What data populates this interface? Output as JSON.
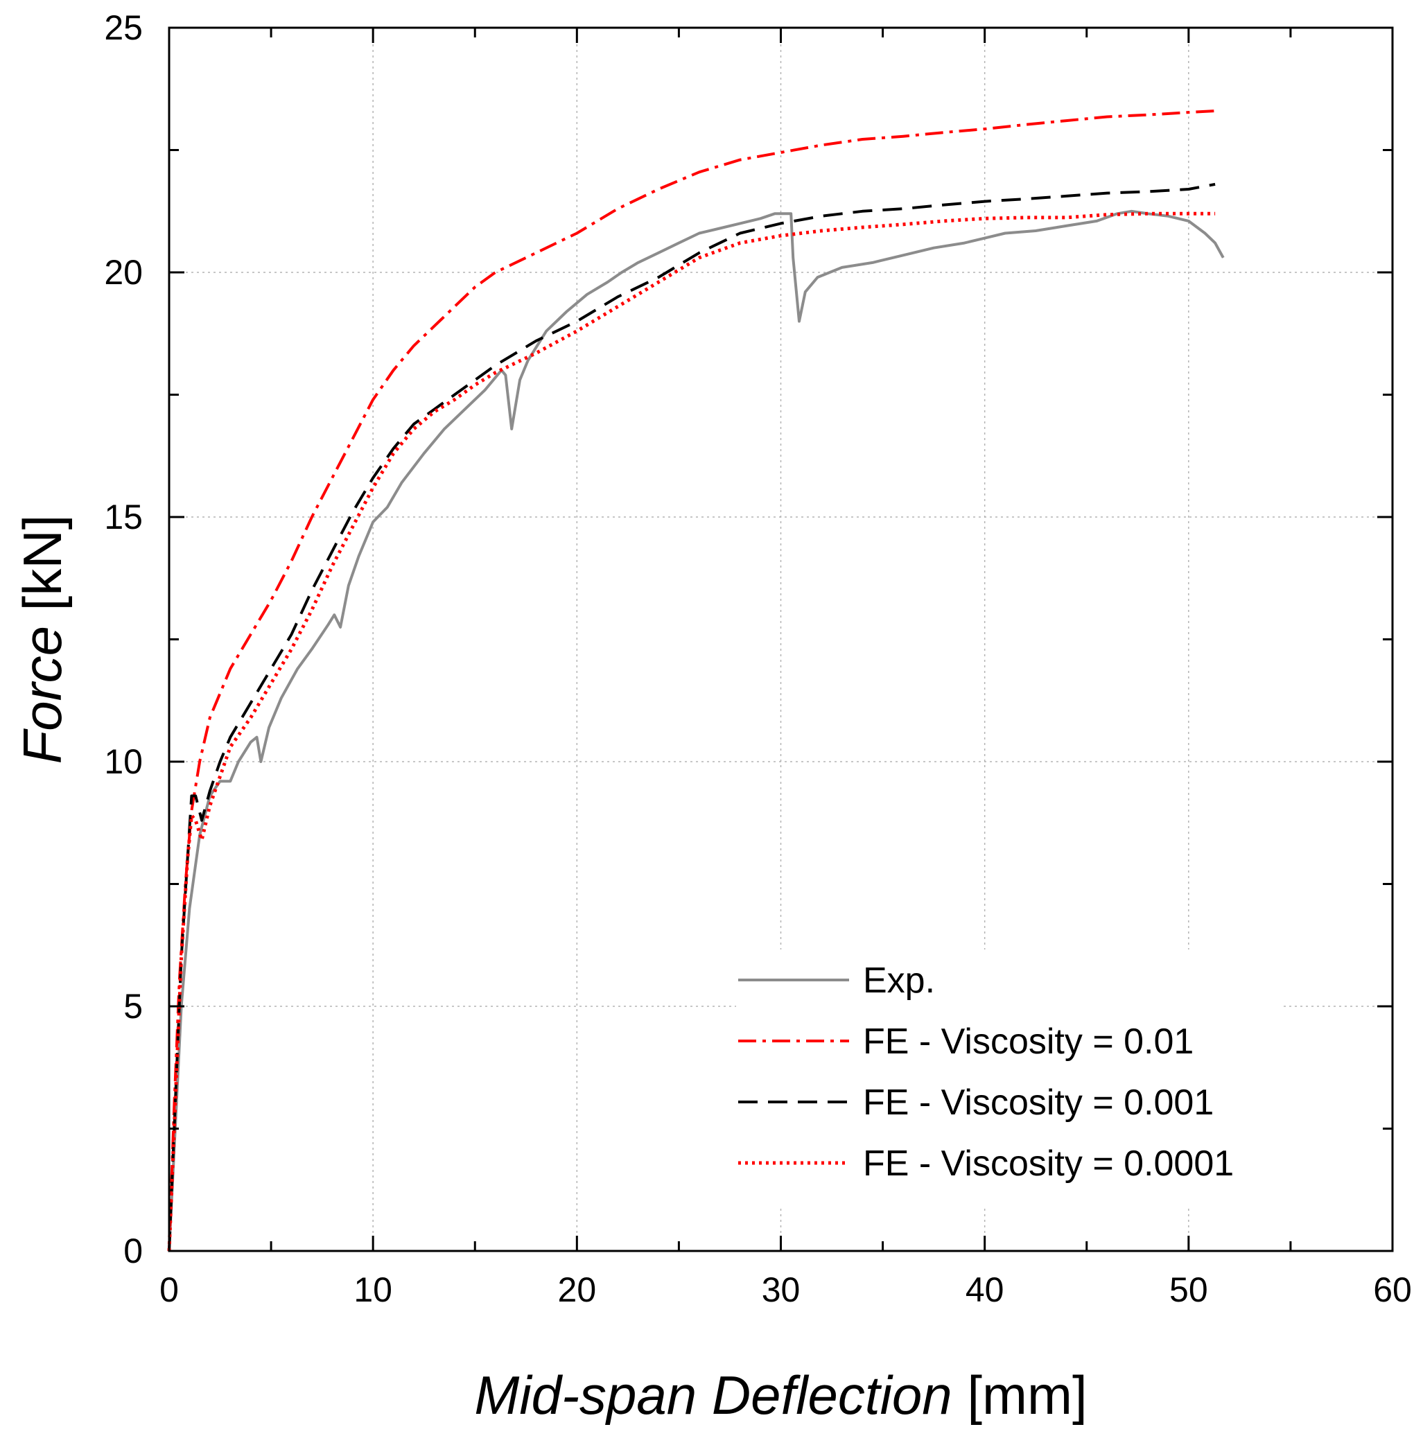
{
  "chart_data": {
    "type": "line",
    "title": "",
    "xlabel": {
      "italic": "Mid-span Deflection",
      "unit": "[mm]"
    },
    "ylabel": {
      "italic": "Force",
      "unit": "[kN]"
    },
    "xlim": [
      0,
      60
    ],
    "ylim": [
      0,
      25
    ],
    "xticks": [
      0,
      10,
      20,
      30,
      40,
      50,
      60
    ],
    "yticks": [
      0,
      5,
      10,
      15,
      20,
      25
    ],
    "xtick_labels": [
      "0",
      "10",
      "20",
      "30",
      "40",
      "50",
      "60"
    ],
    "ytick_labels": [
      "0",
      "5",
      "10",
      "15",
      "20",
      "25"
    ],
    "grid": true,
    "legend_position": "bottom-right",
    "series": [
      {
        "name": "Exp.",
        "color": "#8c8c8c",
        "style": "solid",
        "points": [
          [
            0,
            0
          ],
          [
            0.3,
            2.5
          ],
          [
            0.6,
            5
          ],
          [
            1.0,
            7
          ],
          [
            1.5,
            8.5
          ],
          [
            2.0,
            9.3
          ],
          [
            2.5,
            9.6
          ],
          [
            3.0,
            9.6
          ],
          [
            3.4,
            10.0
          ],
          [
            4.0,
            10.4
          ],
          [
            4.3,
            10.5
          ],
          [
            4.5,
            10.0
          ],
          [
            4.9,
            10.7
          ],
          [
            5.5,
            11.3
          ],
          [
            6.3,
            11.9
          ],
          [
            7.0,
            12.3
          ],
          [
            7.8,
            12.8
          ],
          [
            8.1,
            13.0
          ],
          [
            8.4,
            12.75
          ],
          [
            8.8,
            13.6
          ],
          [
            9.3,
            14.2
          ],
          [
            10.0,
            14.9
          ],
          [
            10.7,
            15.2
          ],
          [
            11.4,
            15.7
          ],
          [
            12.5,
            16.3
          ],
          [
            13.5,
            16.8
          ],
          [
            14.5,
            17.2
          ],
          [
            15.5,
            17.6
          ],
          [
            16.3,
            18.0
          ],
          [
            16.5,
            17.9
          ],
          [
            16.8,
            16.8
          ],
          [
            17.2,
            17.8
          ],
          [
            17.6,
            18.2
          ],
          [
            18.5,
            18.8
          ],
          [
            19.5,
            19.2
          ],
          [
            20.5,
            19.55
          ],
          [
            21.5,
            19.8
          ],
          [
            22.2,
            20.0
          ],
          [
            23.0,
            20.2
          ],
          [
            24.0,
            20.4
          ],
          [
            25.0,
            20.6
          ],
          [
            26.0,
            20.8
          ],
          [
            27.0,
            20.9
          ],
          [
            28.0,
            21.0
          ],
          [
            29.0,
            21.1
          ],
          [
            29.7,
            21.2
          ],
          [
            30.5,
            21.2
          ],
          [
            30.6,
            20.3
          ],
          [
            30.9,
            19.0
          ],
          [
            31.2,
            19.6
          ],
          [
            31.8,
            19.9
          ],
          [
            33.0,
            20.1
          ],
          [
            34.5,
            20.2
          ],
          [
            36.0,
            20.35
          ],
          [
            37.5,
            20.5
          ],
          [
            39.0,
            20.6
          ],
          [
            40.0,
            20.7
          ],
          [
            41.0,
            20.8
          ],
          [
            42.5,
            20.85
          ],
          [
            44.0,
            20.95
          ],
          [
            45.5,
            21.05
          ],
          [
            46.5,
            21.2
          ],
          [
            47.2,
            21.25
          ],
          [
            48.0,
            21.2
          ],
          [
            49.0,
            21.15
          ],
          [
            50.0,
            21.05
          ],
          [
            50.8,
            20.8
          ],
          [
            51.3,
            20.6
          ],
          [
            51.7,
            20.3
          ]
        ]
      },
      {
        "name": "FE - Viscosity = 0.01",
        "color": "#ff0000",
        "style": "dashdot",
        "points": [
          [
            0,
            0
          ],
          [
            0.25,
            3
          ],
          [
            0.5,
            5.5
          ],
          [
            0.8,
            7.5
          ],
          [
            1.1,
            9.0
          ],
          [
            1.5,
            10.0
          ],
          [
            2.0,
            10.9
          ],
          [
            3.0,
            11.9
          ],
          [
            4.0,
            12.6
          ],
          [
            5.0,
            13.3
          ],
          [
            6.0,
            14.1
          ],
          [
            7.0,
            15.0
          ],
          [
            8.0,
            15.8
          ],
          [
            9.0,
            16.6
          ],
          [
            10.0,
            17.4
          ],
          [
            11.0,
            18.0
          ],
          [
            12.0,
            18.5
          ],
          [
            13.0,
            18.9
          ],
          [
            14.0,
            19.3
          ],
          [
            15.0,
            19.7
          ],
          [
            16.0,
            20.0
          ],
          [
            17.0,
            20.2
          ],
          [
            18.0,
            20.4
          ],
          [
            19.0,
            20.6
          ],
          [
            20.0,
            20.8
          ],
          [
            22.0,
            21.3
          ],
          [
            24.0,
            21.7
          ],
          [
            26.0,
            22.05
          ],
          [
            28.0,
            22.3
          ],
          [
            30.0,
            22.45
          ],
          [
            32.0,
            22.6
          ],
          [
            34.0,
            22.72
          ],
          [
            36.0,
            22.78
          ],
          [
            38.0,
            22.86
          ],
          [
            40.0,
            22.93
          ],
          [
            42.0,
            23.02
          ],
          [
            44.0,
            23.1
          ],
          [
            46.0,
            23.18
          ],
          [
            48.0,
            23.22
          ],
          [
            50.0,
            23.27
          ],
          [
            51.3,
            23.3
          ]
        ]
      },
      {
        "name": "FE - Viscosity = 0.001",
        "color": "#000000",
        "style": "dashed",
        "points": [
          [
            0,
            0
          ],
          [
            0.3,
            3
          ],
          [
            0.6,
            6
          ],
          [
            0.9,
            8
          ],
          [
            1.1,
            9.3
          ],
          [
            1.3,
            9.3
          ],
          [
            1.6,
            8.8
          ],
          [
            2.0,
            9.4
          ],
          [
            2.5,
            10.0
          ],
          [
            3.0,
            10.5
          ],
          [
            4.0,
            11.2
          ],
          [
            5.0,
            11.9
          ],
          [
            6.0,
            12.6
          ],
          [
            7.0,
            13.5
          ],
          [
            8.0,
            14.3
          ],
          [
            9.0,
            15.1
          ],
          [
            10.0,
            15.8
          ],
          [
            11.0,
            16.4
          ],
          [
            12.0,
            16.9
          ],
          [
            13.0,
            17.2
          ],
          [
            14.0,
            17.5
          ],
          [
            15.0,
            17.8
          ],
          [
            16.0,
            18.1
          ],
          [
            17.0,
            18.35
          ],
          [
            18.0,
            18.6
          ],
          [
            20.0,
            19.0
          ],
          [
            22.0,
            19.5
          ],
          [
            24.0,
            19.9
          ],
          [
            26.0,
            20.4
          ],
          [
            28.0,
            20.8
          ],
          [
            30.0,
            21.0
          ],
          [
            32.0,
            21.15
          ],
          [
            34.0,
            21.25
          ],
          [
            36.0,
            21.3
          ],
          [
            38.0,
            21.38
          ],
          [
            40.0,
            21.45
          ],
          [
            42.0,
            21.5
          ],
          [
            44.0,
            21.56
          ],
          [
            46.0,
            21.62
          ],
          [
            48.0,
            21.65
          ],
          [
            50.0,
            21.7
          ],
          [
            51.3,
            21.8
          ]
        ]
      },
      {
        "name": "FE - Viscosity = 0.0001",
        "color": "#ff0000",
        "style": "dotted",
        "points": [
          [
            0,
            0
          ],
          [
            0.3,
            3
          ],
          [
            0.6,
            6
          ],
          [
            0.9,
            8
          ],
          [
            1.1,
            8.9
          ],
          [
            1.3,
            8.8
          ],
          [
            1.6,
            8.4
          ],
          [
            2.0,
            9.1
          ],
          [
            2.5,
            9.7
          ],
          [
            3.0,
            10.3
          ],
          [
            4.0,
            10.9
          ],
          [
            5.0,
            11.6
          ],
          [
            6.0,
            12.3
          ],
          [
            7.0,
            13.1
          ],
          [
            8.0,
            14.0
          ],
          [
            9.0,
            14.8
          ],
          [
            10.0,
            15.6
          ],
          [
            11.0,
            16.3
          ],
          [
            12.0,
            16.8
          ],
          [
            13.0,
            17.15
          ],
          [
            14.0,
            17.4
          ],
          [
            15.0,
            17.7
          ],
          [
            16.0,
            17.95
          ],
          [
            17.0,
            18.15
          ],
          [
            18.0,
            18.35
          ],
          [
            20.0,
            18.8
          ],
          [
            22.0,
            19.3
          ],
          [
            24.0,
            19.8
          ],
          [
            26.0,
            20.3
          ],
          [
            28.0,
            20.6
          ],
          [
            30.0,
            20.75
          ],
          [
            32.0,
            20.85
          ],
          [
            34.0,
            20.92
          ],
          [
            36.0,
            20.98
          ],
          [
            38.0,
            21.05
          ],
          [
            40.0,
            21.1
          ],
          [
            42.0,
            21.12
          ],
          [
            44.0,
            21.12
          ],
          [
            46.0,
            21.18
          ],
          [
            48.0,
            21.2
          ],
          [
            50.0,
            21.2
          ],
          [
            51.3,
            21.2
          ]
        ]
      }
    ]
  }
}
